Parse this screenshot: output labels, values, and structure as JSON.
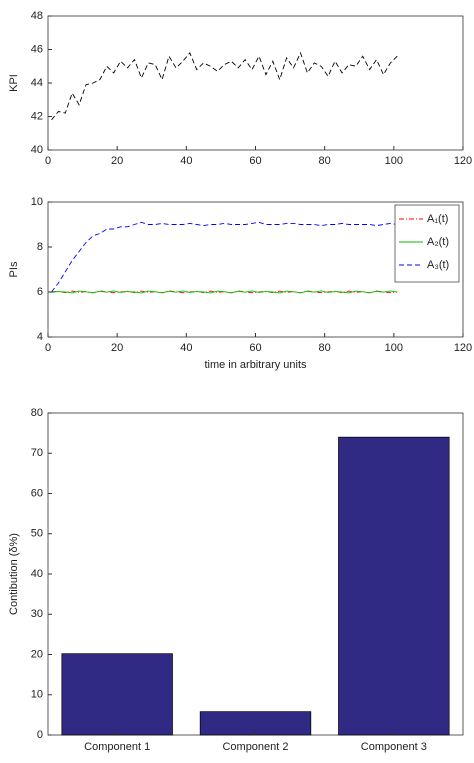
{
  "chart_data": [
    {
      "type": "line",
      "ylabel": "KPI",
      "xlim": [
        0,
        120
      ],
      "xticks": [
        0,
        20,
        40,
        60,
        80,
        100,
        120
      ],
      "ylim": [
        40,
        48
      ],
      "yticks": [
        40,
        42,
        44,
        46,
        48
      ],
      "x": [
        1,
        3,
        5,
        7,
        9,
        11,
        13,
        15,
        17,
        19,
        21,
        23,
        25,
        27,
        29,
        31,
        33,
        35,
        37,
        39,
        41,
        43,
        45,
        47,
        49,
        51,
        53,
        55,
        57,
        59,
        61,
        63,
        65,
        67,
        69,
        71,
        73,
        75,
        77,
        79,
        81,
        83,
        85,
        87,
        89,
        91,
        93,
        95,
        97,
        99,
        101
      ],
      "series": [
        {
          "color": "#000000",
          "linestyle": "dashed",
          "values": [
            41.8,
            42.3,
            42.2,
            43.4,
            42.7,
            43.9,
            44.0,
            44.2,
            45.0,
            44.6,
            45.3,
            44.9,
            45.4,
            44.3,
            45.2,
            45.1,
            44.2,
            45.6,
            44.9,
            45.3,
            45.8,
            44.8,
            45.2,
            45.0,
            44.7,
            45.1,
            45.3,
            44.9,
            45.4,
            44.8,
            45.6,
            44.5,
            45.3,
            44.2,
            45.5,
            44.9,
            45.8,
            44.6,
            45.2,
            45.0,
            44.4,
            45.3,
            44.6,
            45.1,
            45.0,
            45.6,
            44.8,
            45.4,
            44.5,
            45.2,
            45.6
          ]
        }
      ]
    },
    {
      "type": "line",
      "ylabel": "PIs",
      "xlabel": "time in arbitrary units",
      "xlim": [
        0,
        120
      ],
      "xticks": [
        0,
        20,
        40,
        60,
        80,
        100,
        120
      ],
      "ylim": [
        4,
        10
      ],
      "yticks": [
        4,
        6,
        8,
        10
      ],
      "legend": "northeast",
      "x": [
        1,
        3,
        5,
        7,
        9,
        11,
        13,
        15,
        17,
        19,
        21,
        23,
        25,
        27,
        29,
        31,
        33,
        35,
        37,
        39,
        41,
        43,
        45,
        47,
        49,
        51,
        53,
        55,
        57,
        59,
        61,
        63,
        65,
        67,
        69,
        71,
        73,
        75,
        77,
        79,
        81,
        83,
        85,
        87,
        89,
        91,
        93,
        95,
        97,
        99,
        101
      ],
      "series": [
        {
          "name": "A₁(t)",
          "color": "#ff0000",
          "linestyle": "dashdot",
          "values": [
            6.0,
            6.03,
            5.97,
            6.04,
            5.98,
            6.02,
            5.96,
            6.05,
            6.0,
            5.97,
            6.0,
            6.03,
            5.97,
            6.04,
            5.98,
            6.02,
            5.96,
            6.05,
            6.0,
            5.97,
            6.0,
            6.03,
            5.97,
            6.04,
            5.98,
            6.02,
            5.96,
            6.05,
            6.0,
            5.97,
            6.0,
            6.03,
            5.97,
            6.04,
            5.98,
            6.02,
            5.96,
            6.05,
            6.0,
            5.97,
            6.0,
            6.03,
            5.97,
            6.04,
            5.98,
            6.02,
            5.96,
            6.05,
            6.0,
            5.97,
            6.0
          ]
        },
        {
          "name": "A₂(t)",
          "color": "#00c000",
          "linestyle": "solid",
          "values": [
            5.98,
            6.02,
            6.0,
            5.96,
            6.04,
            6.01,
            5.97,
            6.03,
            5.99,
            6.05,
            5.98,
            6.02,
            6.0,
            5.96,
            6.04,
            6.01,
            5.97,
            6.03,
            5.99,
            6.05,
            5.98,
            6.02,
            6.0,
            5.96,
            6.04,
            6.01,
            5.97,
            6.03,
            5.99,
            6.05,
            5.98,
            6.02,
            6.0,
            5.96,
            6.04,
            6.01,
            5.97,
            6.03,
            5.99,
            6.05,
            5.98,
            6.02,
            6.0,
            5.96,
            6.04,
            6.01,
            5.97,
            6.03,
            5.99,
            6.05,
            6.0
          ]
        },
        {
          "name": "A₃(t)",
          "color": "#0000ff",
          "linestyle": "dashed",
          "values": [
            6.0,
            6.4,
            6.9,
            7.4,
            7.8,
            8.2,
            8.5,
            8.6,
            8.8,
            8.8,
            8.9,
            8.9,
            9.0,
            9.1,
            9.0,
            9.0,
            9.05,
            9.0,
            9.0,
            9.0,
            9.05,
            9.0,
            8.95,
            9.0,
            9.0,
            9.05,
            9.0,
            9.0,
            9.0,
            9.05,
            9.1,
            9.0,
            9.0,
            9.0,
            9.05,
            9.05,
            9.0,
            9.0,
            9.0,
            8.95,
            9.0,
            9.0,
            9.05,
            9.0,
            9.0,
            9.0,
            9.0,
            8.95,
            9.0,
            9.05,
            9.0
          ]
        }
      ]
    },
    {
      "type": "bar",
      "ylabel": "Contibution (δ%)",
      "categories": [
        "Component 1",
        "Component 2",
        "Component 3"
      ],
      "values": [
        20.2,
        5.8,
        74
      ],
      "color": "#312a84",
      "ylim": [
        0,
        80
      ],
      "yticks": [
        0,
        10,
        20,
        30,
        40,
        50,
        60,
        70,
        80
      ]
    }
  ]
}
